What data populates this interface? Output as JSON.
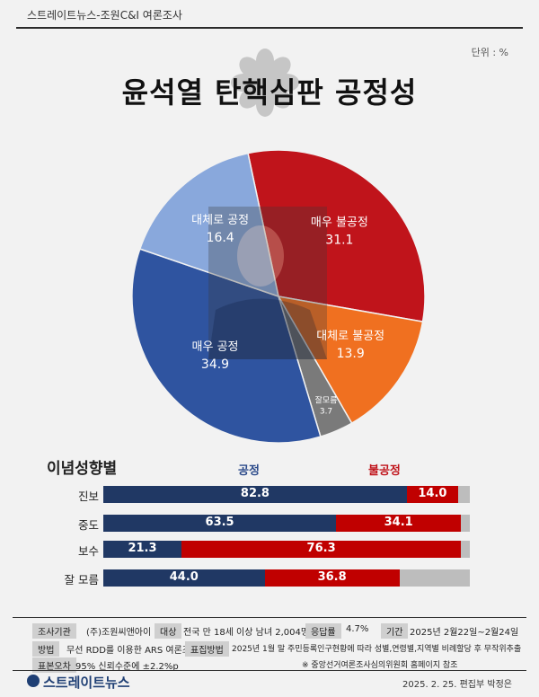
{
  "header": {
    "source": "스트레이트뉴스-조원C&I 여론조사",
    "unit": "단위 : %",
    "title": "윤석열 탄핵심판 공정성"
  },
  "chart_data": [
    {
      "type": "pie",
      "slices": [
        {
          "label": "매우 불공정",
          "value": 31.1,
          "color": "#c0141b"
        },
        {
          "label": "대체로 불공정",
          "value": 13.9,
          "color": "#f07020"
        },
        {
          "label": "잘모름",
          "value": 3.7,
          "color": "#7a7a7a"
        },
        {
          "label": "매우 공정",
          "value": 34.9,
          "color": "#2f54a0"
        },
        {
          "label": "대체로 공정",
          "value": 16.4,
          "color": "#89a8dc"
        }
      ]
    },
    {
      "type": "bar",
      "title": "이념성향별",
      "series_names": [
        "공정",
        "불공정"
      ],
      "categories": [
        "진보",
        "중도",
        "보수",
        "잘 모름"
      ],
      "series": [
        {
          "name": "공정",
          "values": [
            82.8,
            63.5,
            21.3,
            44.0
          ],
          "color": "#203864"
        },
        {
          "name": "불공정",
          "values": [
            14.0,
            34.1,
            76.3,
            36.8
          ],
          "color": "#c00000"
        }
      ],
      "display_values": {
        "good": [
          "82.8",
          "63.5",
          "21.3",
          "44.0"
        ],
        "bad": [
          "14.0",
          "34.1",
          "76.3",
          "36.8"
        ]
      },
      "stacked": true,
      "orientation": "horizontal",
      "xlim": [
        0,
        100
      ]
    }
  ],
  "info": {
    "agency_tag": "조사기관",
    "agency": "(주)조원씨앤아이",
    "target_tag": "대상",
    "target": "전국 만 18세 이상 남녀 2,004명",
    "response_tag": "응답률",
    "response": "4.7%",
    "period_tag": "기간",
    "period": "2025년 2월22일~2월24일",
    "method_tag": "방법",
    "method": "무선 RDD를 이용한 ARS 여론조사",
    "sampling_tag": "표집방법",
    "sampling": "2025년 1월 말 주민등록인구현황에 따라 성별,연령별,지역별 비례할당 후 무작위추출",
    "error_tag": "표본오차",
    "error": "95% 신뢰수준에 ±2.2%p",
    "note": "※ 중앙선거여론조사심의위원회 홈페이지 참조"
  },
  "footer": {
    "logo": "스트레이트뉴스",
    "date": "2025. 2. 25. 편집부 박정은"
  }
}
